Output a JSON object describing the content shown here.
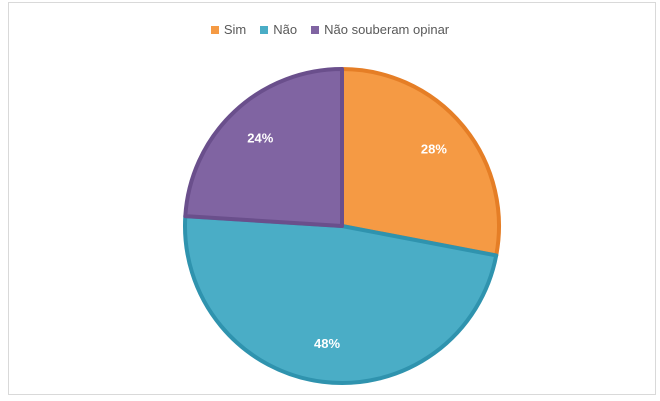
{
  "chart_data": {
    "type": "pie",
    "legend_position": "top",
    "slices": [
      {
        "label": "Sim",
        "value": 28,
        "value_label": "28%",
        "color": "#F59A44",
        "edge": "#E57E26"
      },
      {
        "label": "Não",
        "value": 48,
        "value_label": "48%",
        "color": "#4AADC6",
        "edge": "#2F93AE"
      },
      {
        "label": "Não souberam opinar",
        "value": 24,
        "value_label": "24%",
        "color": "#8064A2",
        "edge": "#6A4F8C"
      }
    ]
  }
}
